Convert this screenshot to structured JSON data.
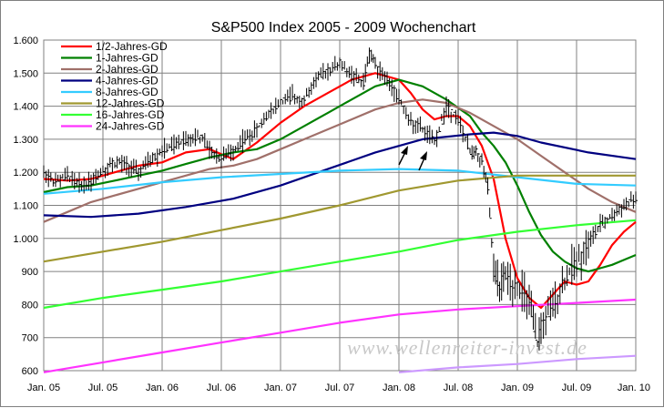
{
  "chart_data": {
    "type": "line",
    "title": "S&P500 Index 2005 - 2009 Wochenchart",
    "watermark": "www.wellenreiter-invest.de",
    "xlabel": "",
    "ylabel": "",
    "ylim": [
      600,
      1600
    ],
    "y_ticks": [
      "1.600",
      "1.500",
      "1.400",
      "1.300",
      "1.200",
      "1.100",
      "1.000",
      "900",
      "800",
      "700",
      "600"
    ],
    "y_tick_values": [
      1600,
      1500,
      1400,
      1300,
      1200,
      1100,
      1000,
      900,
      800,
      700,
      600
    ],
    "x_ticks": [
      "Jan. 05",
      "Jul. 05",
      "Jan. 06",
      "Jul. 06",
      "Jan. 07",
      "Jul. 07",
      "Jan. 08",
      "Jul. 08",
      "Jan. 09",
      "Jul. 09",
      "Jan. 10"
    ],
    "x_tick_values": [
      2005.0,
      2005.5,
      2006.0,
      2006.5,
      2007.0,
      2007.5,
      2008.0,
      2008.5,
      2009.0,
      2009.5,
      2010.0
    ],
    "xlim": [
      2005.0,
      2010.0
    ],
    "grid": true,
    "legend_position": "top-left",
    "price_series": {
      "x": [
        2005.0,
        2005.1,
        2005.2,
        2005.3,
        2005.4,
        2005.5,
        2005.6,
        2005.7,
        2005.8,
        2005.9,
        2006.0,
        2006.1,
        2006.2,
        2006.3,
        2006.4,
        2006.5,
        2006.6,
        2006.7,
        2006.8,
        2006.9,
        2007.0,
        2007.1,
        2007.2,
        2007.3,
        2007.4,
        2007.5,
        2007.6,
        2007.7,
        2007.75,
        2007.8,
        2007.9,
        2008.0,
        2008.1,
        2008.2,
        2008.3,
        2008.4,
        2008.5,
        2008.6,
        2008.65,
        2008.7,
        2008.75,
        2008.8,
        2008.85,
        2008.9,
        2009.0,
        2009.1,
        2009.17,
        2009.2,
        2009.3,
        2009.4,
        2009.5,
        2009.6,
        2009.7,
        2009.8,
        2009.9,
        2010.0
      ],
      "values": [
        1200,
        1170,
        1190,
        1160,
        1175,
        1210,
        1230,
        1220,
        1200,
        1240,
        1265,
        1280,
        1300,
        1310,
        1270,
        1240,
        1270,
        1300,
        1330,
        1380,
        1410,
        1430,
        1420,
        1480,
        1510,
        1530,
        1490,
        1470,
        1560,
        1530,
        1480,
        1420,
        1350,
        1330,
        1290,
        1400,
        1360,
        1260,
        1260,
        1230,
        1150,
        900,
        860,
        880,
        860,
        800,
        680,
        730,
        800,
        880,
        930,
        990,
        1040,
        1070,
        1100,
        1120
      ]
    },
    "series": [
      {
        "name": "1/2-Jahres-GD",
        "color": "#ff0000",
        "x": [
          2005.0,
          2005.2,
          2005.4,
          2005.6,
          2005.8,
          2006.0,
          2006.2,
          2006.4,
          2006.6,
          2006.8,
          2007.0,
          2007.2,
          2007.4,
          2007.6,
          2007.8,
          2008.0,
          2008.1,
          2008.2,
          2008.3,
          2008.4,
          2008.5,
          2008.6,
          2008.7,
          2008.8,
          2008.9,
          2009.0,
          2009.1,
          2009.2,
          2009.3,
          2009.4,
          2009.5,
          2009.6,
          2009.7,
          2009.8,
          2009.9,
          2010.0
        ],
        "values": [
          1180,
          1175,
          1180,
          1200,
          1220,
          1230,
          1260,
          1270,
          1240,
          1290,
          1350,
          1400,
          1440,
          1480,
          1500,
          1480,
          1440,
          1390,
          1360,
          1370,
          1370,
          1340,
          1280,
          1180,
          1000,
          880,
          820,
          790,
          830,
          870,
          860,
          870,
          920,
          980,
          1020,
          1050
        ]
      },
      {
        "name": "1-Jahres-GD",
        "color": "#008000",
        "x": [
          2005.0,
          2005.2,
          2005.4,
          2005.6,
          2005.8,
          2006.0,
          2006.2,
          2006.4,
          2006.6,
          2006.8,
          2007.0,
          2007.2,
          2007.4,
          2007.6,
          2007.8,
          2008.0,
          2008.2,
          2008.4,
          2008.6,
          2008.7,
          2008.8,
          2008.9,
          2009.0,
          2009.1,
          2009.2,
          2009.3,
          2009.4,
          2009.5,
          2009.6,
          2009.7,
          2009.8,
          2009.9,
          2010.0
        ],
        "values": [
          1140,
          1155,
          1160,
          1175,
          1190,
          1205,
          1225,
          1245,
          1260,
          1270,
          1300,
          1340,
          1380,
          1420,
          1460,
          1480,
          1460,
          1420,
          1370,
          1320,
          1280,
          1230,
          1160,
          1080,
          1010,
          960,
          930,
          910,
          900,
          910,
          920,
          935,
          950
        ]
      },
      {
        "name": "2-Jahres-GD",
        "color": "#a0706a",
        "x": [
          2005.0,
          2005.2,
          2005.4,
          2005.6,
          2005.8,
          2006.0,
          2006.2,
          2006.4,
          2006.6,
          2006.8,
          2007.0,
          2007.2,
          2007.4,
          2007.6,
          2007.8,
          2008.0,
          2008.2,
          2008.4,
          2008.6,
          2008.8,
          2009.0,
          2009.2,
          2009.4,
          2009.6,
          2009.8,
          2010.0
        ],
        "values": [
          1050,
          1080,
          1110,
          1130,
          1150,
          1170,
          1190,
          1210,
          1220,
          1240,
          1270,
          1300,
          1330,
          1360,
          1390,
          1410,
          1420,
          1410,
          1380,
          1340,
          1300,
          1250,
          1200,
          1150,
          1110,
          1080
        ]
      },
      {
        "name": "4-Jahres-GD",
        "color": "#000080",
        "x": [
          2005.0,
          2005.4,
          2005.8,
          2006.2,
          2006.6,
          2007.0,
          2007.4,
          2007.8,
          2008.2,
          2008.6,
          2008.8,
          2009.0,
          2009.2,
          2009.6,
          2010.0
        ],
        "values": [
          1070,
          1065,
          1075,
          1095,
          1120,
          1160,
          1210,
          1260,
          1300,
          1315,
          1320,
          1310,
          1290,
          1260,
          1240
        ]
      },
      {
        "name": "8-Jahres-GD",
        "color": "#33ccff",
        "x": [
          2005.0,
          2005.5,
          2006.0,
          2006.5,
          2007.0,
          2007.5,
          2008.0,
          2008.5,
          2009.0,
          2009.5,
          2010.0
        ],
        "values": [
          1135,
          1150,
          1170,
          1185,
          1195,
          1205,
          1210,
          1205,
          1185,
          1165,
          1160
        ]
      },
      {
        "name": "12-Jahres-GD",
        "color": "#a09830",
        "x": [
          2005.0,
          2005.5,
          2006.0,
          2006.5,
          2007.0,
          2007.5,
          2008.0,
          2008.5,
          2009.0,
          2009.5,
          2010.0
        ],
        "values": [
          930,
          960,
          990,
          1025,
          1060,
          1100,
          1145,
          1175,
          1190,
          1190,
          1190
        ]
      },
      {
        "name": "16-Jahres-GD",
        "color": "#33ff33",
        "x": [
          2005.0,
          2005.5,
          2006.0,
          2006.5,
          2007.0,
          2007.5,
          2008.0,
          2008.5,
          2009.0,
          2009.5,
          2010.0
        ],
        "values": [
          790,
          820,
          845,
          870,
          900,
          930,
          960,
          995,
          1020,
          1040,
          1055
        ]
      },
      {
        "name": "24-Jahres-GD",
        "color": "#ff33ff",
        "x": [
          2005.0,
          2005.5,
          2006.0,
          2006.5,
          2007.0,
          2007.5,
          2008.0,
          2008.5,
          2009.0,
          2009.5,
          2010.0
        ],
        "values": [
          595,
          625,
          655,
          685,
          715,
          745,
          770,
          785,
          795,
          805,
          815
        ]
      },
      {
        "name": "",
        "color": "#cc99ff",
        "x": [
          2008.0,
          2008.5,
          2009.0,
          2009.5,
          2010.0
        ],
        "values": [
          595,
          610,
          620,
          635,
          645
        ]
      }
    ]
  }
}
